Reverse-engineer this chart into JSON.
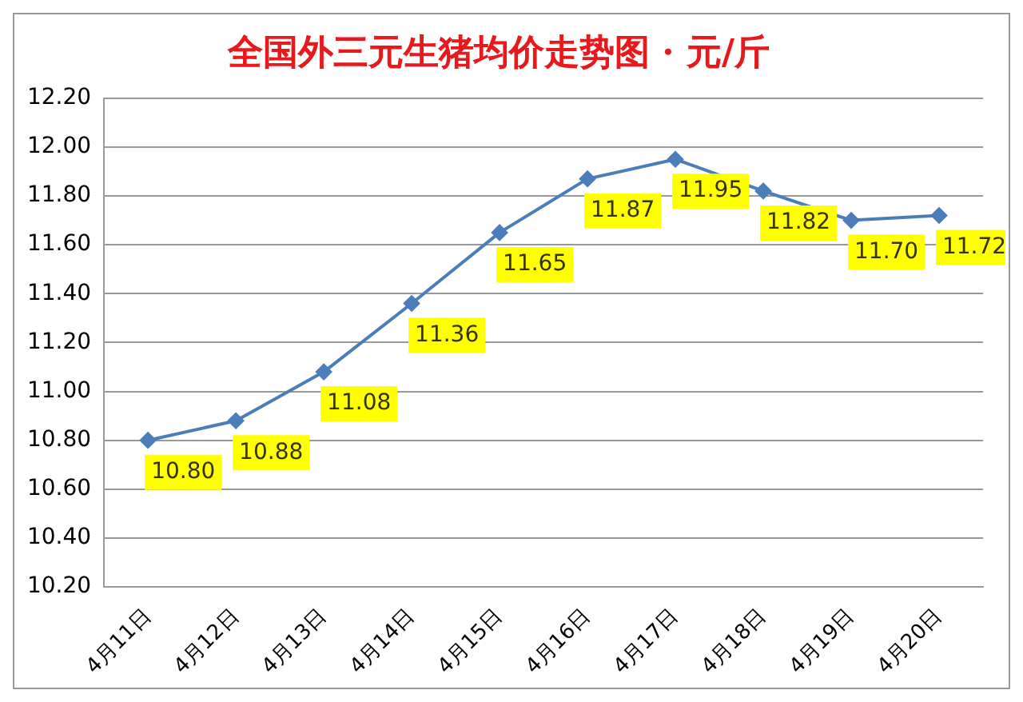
{
  "chart_data": {
    "type": "line",
    "title": "全国外三元生猪均价走势图 · 元/斤",
    "categories": [
      "4月11日",
      "4月12日",
      "4月13日",
      "4月14日",
      "4月15日",
      "4月16日",
      "4月17日",
      "4月18日",
      "4月19日",
      "4月20日"
    ],
    "series": [
      {
        "color": "#4a7ebb",
        "values": [
          10.8,
          10.88,
          11.08,
          11.36,
          11.65,
          11.87,
          11.95,
          11.82,
          11.7,
          11.72
        ],
        "value_labels": [
          "10.80",
          "10.88",
          "11.08",
          "11.36",
          "11.65",
          "11.87",
          "11.95",
          "11.82",
          "11.70",
          "11.72"
        ]
      }
    ],
    "ylim": [
      10.2,
      12.2
    ],
    "yticks": [
      {
        "value": 10.2,
        "label": "10.20"
      },
      {
        "value": 10.4,
        "label": "10.40"
      },
      {
        "value": 10.6,
        "label": "10.60"
      },
      {
        "value": 10.8,
        "label": "10.80"
      },
      {
        "value": 11.0,
        "label": "11.00"
      },
      {
        "value": 11.2,
        "label": "11.20"
      },
      {
        "value": 11.4,
        "label": "11.40"
      },
      {
        "value": 11.6,
        "label": "11.60"
      },
      {
        "value": 11.8,
        "label": "11.80"
      },
      {
        "value": 12.0,
        "label": "12.00"
      },
      {
        "value": 12.2,
        "label": "12.20"
      }
    ],
    "grid": "y",
    "legend": false,
    "marker": "diamond",
    "line_style": "solid"
  }
}
